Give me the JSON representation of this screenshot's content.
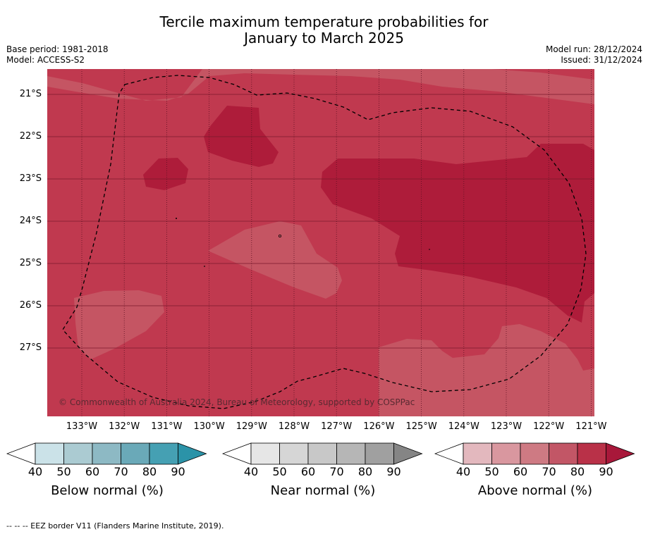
{
  "title_line1": "Tercile maximum temperature probabilities for",
  "title_line2": "January to March 2025",
  "base_period": "Base period: 1981-2018",
  "model": "Model: ACCESS-S2",
  "model_run": "Model run: 28/12/2024",
  "issued": "Issued: 31/12/2024",
  "copyright": "© Commonwealth of Australia 2024, Bureau of Meteorology, supported by COSPPac",
  "lat_labels": [
    "21°S",
    "22°S",
    "23°S",
    "24°S",
    "25°S",
    "26°S",
    "27°S"
  ],
  "lon_labels": [
    "133°W",
    "132°W",
    "131°W",
    "130°W",
    "129°W",
    "128°W",
    "127°W",
    "126°W",
    "125°W",
    "124°W",
    "123°W",
    "122°W",
    "121°W"
  ],
  "colorbars": [
    {
      "name": "below",
      "title": "Below normal (%)",
      "ticks": [
        "40",
        "50",
        "60",
        "70",
        "80",
        "90"
      ],
      "colors": [
        "#ffffff",
        "#cbe2e8",
        "#abcbd2",
        "#8db9c4",
        "#6aa9b8",
        "#45a0b3",
        "#2b93a8"
      ]
    },
    {
      "name": "near",
      "title": "Near normal (%)",
      "ticks": [
        "40",
        "50",
        "60",
        "70",
        "80",
        "90"
      ],
      "colors": [
        "#ffffff",
        "#e6e6e6",
        "#d6d6d6",
        "#c8c8c8",
        "#b6b6b6",
        "#a0a0a0",
        "#858585"
      ]
    },
    {
      "name": "above",
      "title": "Above normal (%)",
      "ticks": [
        "40",
        "50",
        "60",
        "70",
        "80",
        "90"
      ],
      "colors": [
        "#ffffff",
        "#e3b8be",
        "#d9979f",
        "#ce7a83",
        "#c25666",
        "#b93148",
        "#a8183a"
      ]
    }
  ],
  "footer": "--  --  -- EEZ border V11 (Flanders Marine Institute, 2019).",
  "palette": {
    "above_70_80": "#c0394f",
    "above_80_90": "#ae1c3a",
    "above_60_70": "#c55563"
  }
}
